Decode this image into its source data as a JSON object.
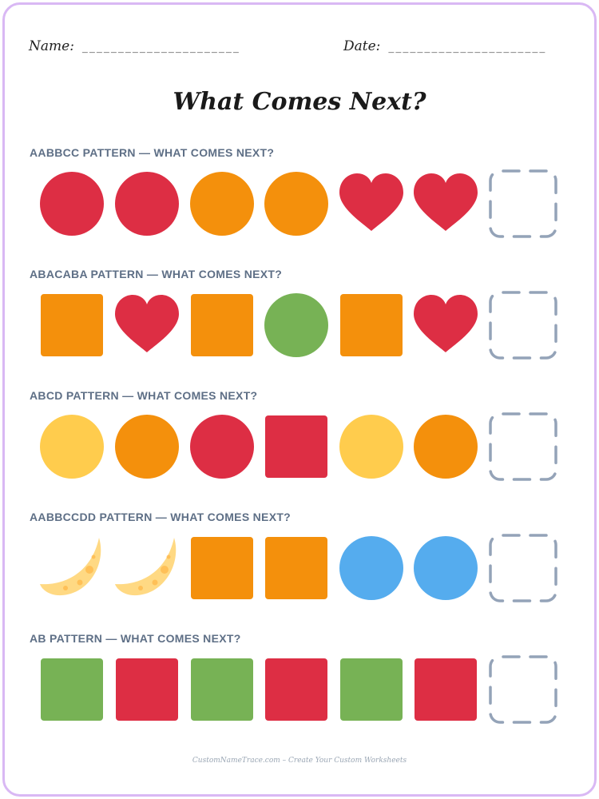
{
  "header": {
    "name_label": "Name:",
    "name_blank": "______________________",
    "date_label": "Date:",
    "date_blank": "______________________"
  },
  "title": "What Comes Next?",
  "colors": {
    "red": "#dd2e44",
    "orange": "#f4900c",
    "yellow": "#ffcc4d",
    "green": "#77b255",
    "blue": "#55acee",
    "moon": "#ffd983",
    "moon_spot": "#ffac33",
    "slot": "#94a3b8",
    "frame": "#d9b8f4"
  },
  "rows": [
    {
      "label": "AABBCC PATTERN — WHAT COMES NEXT?",
      "items": [
        {
          "shape": "circle",
          "color": "red"
        },
        {
          "shape": "circle",
          "color": "red"
        },
        {
          "shape": "circle",
          "color": "orange"
        },
        {
          "shape": "circle",
          "color": "orange"
        },
        {
          "shape": "heart",
          "color": "red"
        },
        {
          "shape": "heart",
          "color": "red"
        },
        {
          "shape": "blank"
        }
      ]
    },
    {
      "label": "ABACABA PATTERN — WHAT COMES NEXT?",
      "items": [
        {
          "shape": "square",
          "color": "orange"
        },
        {
          "shape": "heart",
          "color": "red"
        },
        {
          "shape": "square",
          "color": "orange"
        },
        {
          "shape": "circle",
          "color": "green"
        },
        {
          "shape": "square",
          "color": "orange"
        },
        {
          "shape": "heart",
          "color": "red"
        },
        {
          "shape": "blank"
        }
      ]
    },
    {
      "label": "ABCD PATTERN — WHAT COMES NEXT?",
      "items": [
        {
          "shape": "circle",
          "color": "yellow"
        },
        {
          "shape": "circle",
          "color": "orange"
        },
        {
          "shape": "circle",
          "color": "red"
        },
        {
          "shape": "square",
          "color": "red"
        },
        {
          "shape": "circle",
          "color": "yellow"
        },
        {
          "shape": "circle",
          "color": "orange"
        },
        {
          "shape": "blank"
        }
      ]
    },
    {
      "label": "AABBCCDD PATTERN — WHAT COMES NEXT?",
      "items": [
        {
          "shape": "moon",
          "color": "moon"
        },
        {
          "shape": "moon",
          "color": "moon"
        },
        {
          "shape": "square",
          "color": "orange"
        },
        {
          "shape": "square",
          "color": "orange"
        },
        {
          "shape": "circle",
          "color": "blue"
        },
        {
          "shape": "circle",
          "color": "blue"
        },
        {
          "shape": "blank"
        }
      ]
    },
    {
      "label": "AB PATTERN — WHAT COMES NEXT?",
      "items": [
        {
          "shape": "square",
          "color": "green"
        },
        {
          "shape": "square",
          "color": "red"
        },
        {
          "shape": "square",
          "color": "green"
        },
        {
          "shape": "square",
          "color": "red"
        },
        {
          "shape": "square",
          "color": "green"
        },
        {
          "shape": "square",
          "color": "red"
        },
        {
          "shape": "blank"
        }
      ]
    }
  ],
  "footer": "CustomNameTrace.com – Create Your Custom Worksheets"
}
